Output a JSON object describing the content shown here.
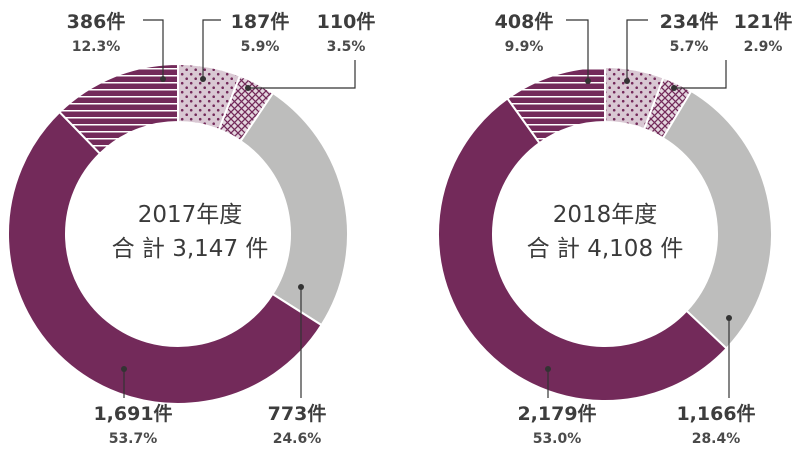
{
  "colors": {
    "maroon": "#732a5a",
    "gray": "#bdbdbc",
    "dot_bg": "#d9c8d3",
    "dot_fg": "#732a5a",
    "text": "#3d3d3d",
    "leader": "#333333"
  },
  "chart_data": [
    {
      "type": "pie",
      "title": "2017年度",
      "total_label": "合 計 3,147 件",
      "slices": [
        {
          "label": "187件",
          "value": 187,
          "percent": "5.9%",
          "pattern": "dots"
        },
        {
          "label": "110件",
          "value": 110,
          "percent": "3.5%",
          "pattern": "crosshatch"
        },
        {
          "label": "773件",
          "value": 773,
          "percent": "24.6%",
          "pattern": "solid-gray"
        },
        {
          "label": "1,691件",
          "value": 1691,
          "percent": "53.7%",
          "pattern": "solid-maroon"
        },
        {
          "label": "386件",
          "value": 386,
          "percent": "12.3%",
          "pattern": "horizontal-stripes"
        }
      ]
    },
    {
      "type": "pie",
      "title": "2018年度",
      "total_label": "合 計 4,108 件",
      "slices": [
        {
          "label": "234件",
          "value": 234,
          "percent": "5.7%",
          "pattern": "dots"
        },
        {
          "label": "121件",
          "value": 121,
          "percent": "2.9%",
          "pattern": "crosshatch"
        },
        {
          "label": "1,166件",
          "value": 1166,
          "percent": "28.4%",
          "pattern": "solid-gray"
        },
        {
          "label": "2,179件",
          "value": 2179,
          "percent": "53.0%",
          "pattern": "solid-maroon"
        },
        {
          "label": "408件",
          "value": 408,
          "percent": "9.9%",
          "pattern": "horizontal-stripes"
        }
      ]
    }
  ]
}
